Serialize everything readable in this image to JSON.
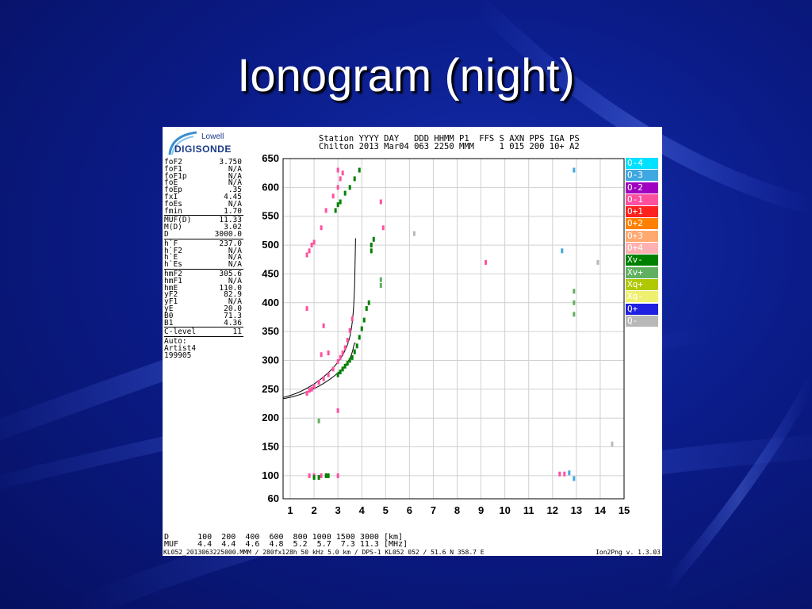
{
  "slide": {
    "title": "Ionogram (night)"
  },
  "logo": {
    "line1": "Lowell",
    "line2": "DIGISONDE"
  },
  "header": {
    "line1": "Station YYYY DAY   DDD HHMM P1  FFS S AXN PPS IGA PS",
    "line2": "Chilton 2013 Mar04 063 2250 MMM     1 015 200 10+ A2"
  },
  "params": [
    {
      "label": "foF2",
      "value": "3.750"
    },
    {
      "label": "foF1",
      "value": "N/A"
    },
    {
      "label": "foF1p",
      "value": "N/A"
    },
    {
      "label": "foE",
      "value": "N/A"
    },
    {
      "label": "foEp",
      "value": ".35"
    },
    {
      "label": "fxI",
      "value": "4.45"
    },
    {
      "label": "foEs",
      "value": "N/A"
    },
    {
      "label": "fmin",
      "value": "1.70"
    },
    {
      "label": "MUF(D)",
      "value": "11.33",
      "sep": true
    },
    {
      "label": "M(D)",
      "value": "3.02"
    },
    {
      "label": "D",
      "value": "3000.0"
    },
    {
      "label": "h`F",
      "value": "237.0",
      "sep": true
    },
    {
      "label": "h`F2",
      "value": "N/A"
    },
    {
      "label": "h`E",
      "value": "N/A"
    },
    {
      "label": "h`Es",
      "value": "N/A"
    },
    {
      "label": "hmF2",
      "value": "305.6",
      "sep": true
    },
    {
      "label": "hmF1",
      "value": "N/A"
    },
    {
      "label": "hmE",
      "value": "110.0"
    },
    {
      "label": "yF2",
      "value": "82.9"
    },
    {
      "label": "yF1",
      "value": "N/A"
    },
    {
      "label": "yE",
      "value": "20.0"
    },
    {
      "label": "B0",
      "value": "71.3"
    },
    {
      "label": "B1",
      "value": "4.36"
    },
    {
      "label": "C-level",
      "value": "11",
      "sep": true
    }
  ],
  "auto": {
    "line1": "Auto:",
    "line2": "Artist4",
    "line3": "199905"
  },
  "bottom": {
    "d_line": "D      100  200  400  600  800 1000 1500 3000 [km]",
    "muf_line": "MUF    4.4  4.4  4.6  4.8  5.2  5.7  7.3 11.3 [MHz]"
  },
  "footer": {
    "left": "KL052_2013063225000.MMM / 280fx128h 50 kHz 5.0 km / DPS-1 KL052 052 / 51.6 N 358.7 E",
    "right": "Ion2Png v. 1.3.03"
  },
  "legend": [
    {
      "label": "O-4",
      "color": "#00e0ff"
    },
    {
      "label": "O-3",
      "color": "#40a8e0"
    },
    {
      "label": "O-2",
      "color": "#a000c0"
    },
    {
      "label": "O-1",
      "color": "#ff50a0"
    },
    {
      "label": "O+1",
      "color": "#ff2020"
    },
    {
      "label": "O+2",
      "color": "#ff8000"
    },
    {
      "label": "O+3",
      "color": "#ffa870"
    },
    {
      "label": "O+4",
      "color": "#ffb0b0"
    },
    {
      "label": "Xv-",
      "color": "#008000"
    },
    {
      "label": "Xv+",
      "color": "#60b060"
    },
    {
      "label": "Xq+",
      "color": "#b0c800"
    },
    {
      "label": "Xq-",
      "color": "#f0f070"
    },
    {
      "label": "Q+",
      "color": "#2020e0"
    },
    {
      "label": "Q-",
      "color": "#b8b8b8"
    }
  ],
  "chart_data": {
    "type": "scatter",
    "xlim": [
      0.7,
      15
    ],
    "ylim": [
      60,
      650
    ],
    "x_ticks": [
      1,
      2,
      3,
      4,
      5,
      6,
      7,
      8,
      9,
      10,
      11,
      12,
      13,
      14,
      15
    ],
    "y_ticks": [
      60,
      100,
      150,
      200,
      250,
      300,
      350,
      400,
      450,
      500,
      550,
      600,
      650
    ],
    "x_tick_labels": [
      "1",
      "2",
      "3",
      "4",
      "5",
      "6",
      "7",
      "8",
      "9",
      "10",
      "11",
      "12",
      "13",
      "14",
      "15"
    ],
    "y_tick_labels": [
      "60",
      "100",
      "150",
      "200",
      "250",
      "300",
      "350",
      "400",
      "450",
      "500",
      "550",
      "600",
      "650"
    ],
    "grid": true,
    "legend_position": "right",
    "series": [
      {
        "name": "O-1",
        "color": "#ff50a0",
        "points": [
          [
            1.7,
            243
          ],
          [
            1.8,
            248
          ],
          [
            1.9,
            250
          ],
          [
            2.0,
            255
          ],
          [
            2.2,
            262
          ],
          [
            2.4,
            268
          ],
          [
            2.6,
            275
          ],
          [
            2.8,
            285
          ],
          [
            3.0,
            298
          ],
          [
            3.1,
            305
          ],
          [
            3.2,
            313
          ],
          [
            3.3,
            322
          ],
          [
            3.4,
            335
          ],
          [
            3.5,
            352
          ],
          [
            3.6,
            372
          ],
          [
            1.7,
            483
          ],
          [
            1.8,
            490
          ],
          [
            1.9,
            500
          ],
          [
            2.0,
            505
          ],
          [
            2.3,
            530
          ],
          [
            2.5,
            560
          ],
          [
            2.8,
            585
          ],
          [
            3.0,
            600
          ],
          [
            3.1,
            615
          ],
          [
            3.2,
            625
          ],
          [
            3.0,
            630
          ],
          [
            4.8,
            575
          ],
          [
            4.9,
            530
          ],
          [
            1.8,
            100
          ],
          [
            2.0,
            100
          ],
          [
            2.3,
            100
          ],
          [
            3.0,
            100
          ],
          [
            12.3,
            103
          ],
          [
            12.5,
            103
          ],
          [
            2.4,
            360
          ],
          [
            1.7,
            390
          ],
          [
            3.0,
            213
          ],
          [
            2.3,
            310
          ],
          [
            2.6,
            313
          ],
          [
            9.2,
            470
          ]
        ]
      },
      {
        "name": "Xv-",
        "color": "#008000",
        "points": [
          [
            3.0,
            275
          ],
          [
            3.1,
            280
          ],
          [
            3.2,
            285
          ],
          [
            3.3,
            290
          ],
          [
            3.4,
            295
          ],
          [
            3.5,
            300
          ],
          [
            3.6,
            305
          ],
          [
            3.7,
            315
          ],
          [
            3.8,
            325
          ],
          [
            3.9,
            340
          ],
          [
            4.0,
            355
          ],
          [
            4.1,
            370
          ],
          [
            4.2,
            390
          ],
          [
            4.3,
            400
          ],
          [
            2.9,
            560
          ],
          [
            3.0,
            570
          ],
          [
            3.1,
            575
          ],
          [
            3.3,
            590
          ],
          [
            3.5,
            600
          ],
          [
            3.7,
            615
          ],
          [
            3.9,
            630
          ],
          [
            4.4,
            490
          ],
          [
            4.4,
            500
          ],
          [
            4.5,
            510
          ],
          [
            2.5,
            100
          ],
          [
            2.6,
            100
          ],
          [
            2.2,
            97
          ],
          [
            2.0,
            97
          ]
        ]
      },
      {
        "name": "Xv+",
        "color": "#60b060",
        "points": [
          [
            12.9,
            420
          ],
          [
            12.9,
            400
          ],
          [
            12.9,
            380
          ],
          [
            2.2,
            195
          ],
          [
            4.8,
            430
          ],
          [
            4.8,
            440
          ]
        ]
      },
      {
        "name": "O-3",
        "color": "#40a8e0",
        "points": [
          [
            12.9,
            630
          ],
          [
            12.7,
            105
          ],
          [
            12.9,
            95
          ],
          [
            12.4,
            490
          ]
        ]
      },
      {
        "name": "Q-",
        "color": "#b8b8b8",
        "points": [
          [
            14.5,
            155
          ],
          [
            13.9,
            470
          ],
          [
            6.2,
            520
          ]
        ]
      }
    ]
  }
}
